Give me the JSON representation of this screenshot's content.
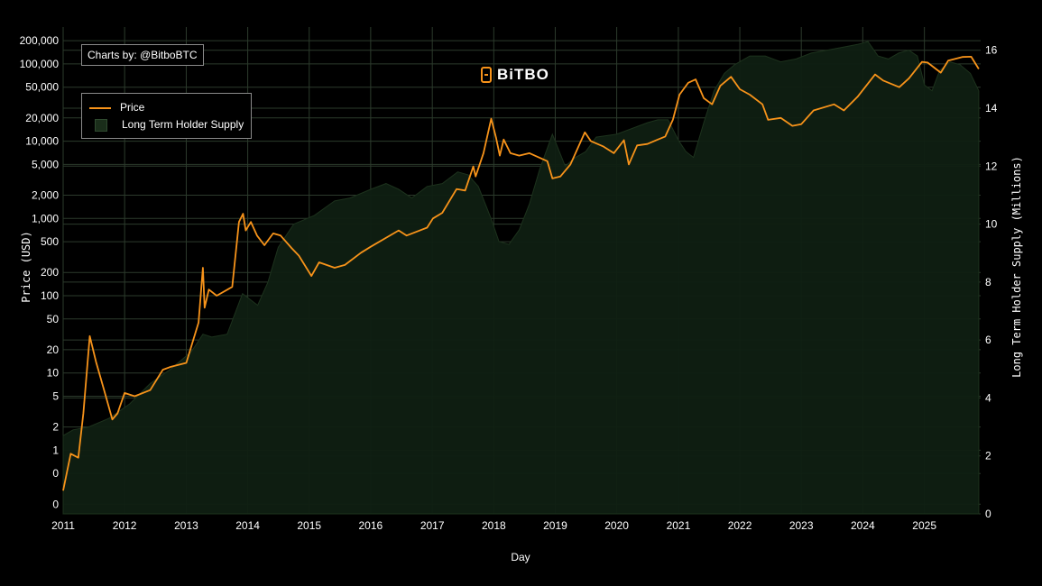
{
  "credit": "Charts by: @BitboBTC",
  "logo": {
    "text": "BiTBO",
    "icon": "bitbo-logo-icon",
    "accent": "#f7931a"
  },
  "legend": {
    "price_label": "Price",
    "supply_label": "Long Term Holder Supply",
    "placement": "top-left"
  },
  "colors": {
    "price": "#f7931a",
    "supply_fill": "#0f1f12",
    "supply_stroke": "#1d321d",
    "grid": "#2c3b2c",
    "background": "#000000"
  },
  "chart_data": {
    "type": "line",
    "title": "",
    "xlabel": "Day",
    "ylabel_left": "Price (USD)",
    "ylabel_right": "Long Term Holder Supply (Millions)",
    "x_ticks": [
      "2011",
      "2012",
      "2013",
      "2014",
      "2015",
      "2016",
      "2017",
      "2018",
      "2019",
      "2020",
      "2021",
      "2022",
      "2023",
      "2024",
      "2025"
    ],
    "y_left_ticks": [
      "200,000",
      "100,000",
      "50,000",
      "20,000",
      "10,000",
      "5,000",
      "2,000",
      "1,000",
      "500",
      "200",
      "100",
      "50",
      "20",
      "10",
      "5",
      "2",
      "1",
      "0",
      "0"
    ],
    "y_right_ticks": [
      "16",
      "14",
      "12",
      "10",
      "8",
      "6",
      "4",
      "2",
      "0"
    ],
    "y_right_range": [
      0,
      16.8
    ],
    "y_left_scale": "log",
    "grid": true,
    "series": [
      {
        "name": "Price",
        "axis": "left",
        "x": [
          "2011-01-01",
          "2011-02-15",
          "2011-04-01",
          "2011-05-01",
          "2011-06-08",
          "2011-07-15",
          "2011-09-01",
          "2011-10-20",
          "2011-11-20",
          "2012-01-01",
          "2012-03-01",
          "2012-06-01",
          "2012-08-15",
          "2012-10-01",
          "2013-01-01",
          "2013-03-15",
          "2013-04-10",
          "2013-04-20",
          "2013-05-15",
          "2013-07-01",
          "2013-10-01",
          "2013-11-10",
          "2013-12-04",
          "2013-12-20",
          "2014-01-20",
          "2014-02-25",
          "2014-04-10",
          "2014-06-01",
          "2014-07-15",
          "2014-09-20",
          "2014-11-01",
          "2015-01-14",
          "2015-03-01",
          "2015-06-01",
          "2015-08-01",
          "2015-11-05",
          "2016-01-01",
          "2016-06-15",
          "2016-08-01",
          "2016-12-01",
          "2017-01-05",
          "2017-03-01",
          "2017-05-25",
          "2017-07-15",
          "2017-09-01",
          "2017-09-15",
          "2017-11-01",
          "2017-12-17",
          "2018-01-15",
          "2018-02-06",
          "2018-03-01",
          "2018-04-10",
          "2018-06-01",
          "2018-08-01",
          "2018-11-15",
          "2018-12-15",
          "2019-02-01",
          "2019-04-01",
          "2019-06-26",
          "2019-08-01",
          "2019-10-15",
          "2019-12-15",
          "2020-02-13",
          "2020-03-13",
          "2020-05-01",
          "2020-07-01",
          "2020-09-01",
          "2020-10-15",
          "2020-11-30",
          "2021-01-08",
          "2021-03-01",
          "2021-04-14",
          "2021-06-01",
          "2021-07-20",
          "2021-09-07",
          "2021-11-10",
          "2022-01-01",
          "2022-03-01",
          "2022-05-15",
          "2022-06-18",
          "2022-09-01",
          "2022-11-09",
          "2023-01-01",
          "2023-03-15",
          "2023-07-15",
          "2023-09-11",
          "2023-12-01",
          "2024-03-14",
          "2024-05-01",
          "2024-08-05",
          "2024-10-01",
          "2024-12-17",
          "2025-01-20",
          "2025-04-08",
          "2025-05-22",
          "2025-08-14",
          "2025-10-06",
          "2025-11-20"
        ],
        "values": [
          0.3,
          0.9,
          0.8,
          3,
          30,
          14,
          6,
          2.5,
          3,
          5.5,
          5,
          6,
          11,
          12,
          13.5,
          45,
          230,
          70,
          120,
          100,
          130,
          900,
          1150,
          700,
          900,
          600,
          450,
          640,
          600,
          410,
          330,
          180,
          270,
          230,
          250,
          360,
          430,
          700,
          600,
          760,
          1000,
          1180,
          2400,
          2300,
          4700,
          3500,
          7000,
          19500,
          11000,
          6500,
          10500,
          7000,
          6500,
          7000,
          5500,
          3300,
          3500,
          5000,
          13000,
          10000,
          8500,
          7000,
          10300,
          5000,
          8800,
          9200,
          10500,
          11500,
          19000,
          40000,
          57000,
          63000,
          36000,
          30000,
          52000,
          68000,
          47000,
          40000,
          30000,
          18900,
          20000,
          15800,
          16600,
          25000,
          30000,
          25000,
          37500,
          73000,
          61000,
          50000,
          65000,
          106000,
          104000,
          77000,
          110000,
          123000,
          124000,
          86000
        ]
      },
      {
        "name": "Long Term Holder Supply",
        "axis": "right",
        "unit": "Millions",
        "x": [
          "2011-01-01",
          "2011-03-01",
          "2011-06-01",
          "2011-10-01",
          "2012-02-01",
          "2012-06-01",
          "2012-10-01",
          "2013-02-01",
          "2013-04-10",
          "2013-06-01",
          "2013-09-01",
          "2013-12-01",
          "2014-03-01",
          "2014-05-01",
          "2014-07-01",
          "2014-10-01",
          "2015-02-01",
          "2015-06-01",
          "2015-09-01",
          "2016-01-01",
          "2016-04-01",
          "2016-06-15",
          "2016-09-01",
          "2016-12-01",
          "2017-03-01",
          "2017-06-01",
          "2017-08-01",
          "2017-10-01",
          "2017-12-15",
          "2018-02-01",
          "2018-04-01",
          "2018-06-01",
          "2018-08-01",
          "2018-10-01",
          "2018-12-15",
          "2019-03-01",
          "2019-05-01",
          "2019-07-01",
          "2019-09-01",
          "2020-01-01",
          "2020-04-01",
          "2020-07-01",
          "2020-09-01",
          "2020-11-01",
          "2021-01-01",
          "2021-02-15",
          "2021-04-01",
          "2021-06-01",
          "2021-08-01",
          "2021-10-01",
          "2021-12-01",
          "2022-03-01",
          "2022-06-01",
          "2022-09-01",
          "2022-12-01",
          "2023-03-01",
          "2023-06-01",
          "2023-09-01",
          "2023-12-01",
          "2024-02-01",
          "2024-04-01",
          "2024-06-01",
          "2024-08-01",
          "2024-10-01",
          "2024-11-20",
          "2025-01-01",
          "2025-02-15",
          "2025-04-01",
          "2025-06-01",
          "2025-08-01",
          "2025-10-01",
          "2025-11-20"
        ],
        "values": [
          2.7,
          2.9,
          3.0,
          3.3,
          3.8,
          4.5,
          5.0,
          5.6,
          6.2,
          6.1,
          6.2,
          7.6,
          7.2,
          8.0,
          9.2,
          10.0,
          10.3,
          10.8,
          10.9,
          11.2,
          11.4,
          11.2,
          10.9,
          11.3,
          11.4,
          11.8,
          11.7,
          11.3,
          10.2,
          9.4,
          9.3,
          9.8,
          10.7,
          11.9,
          13.1,
          12.0,
          12.3,
          12.5,
          13.0,
          13.1,
          13.3,
          13.5,
          13.6,
          13.6,
          12.9,
          12.5,
          12.3,
          13.5,
          14.6,
          15.2,
          15.5,
          15.8,
          15.8,
          15.6,
          15.7,
          15.9,
          16.0,
          16.1,
          16.2,
          16.3,
          15.8,
          15.7,
          15.9,
          16.0,
          15.8,
          14.8,
          14.6,
          15.3,
          15.6,
          15.5,
          15.2,
          14.6
        ]
      }
    ]
  }
}
